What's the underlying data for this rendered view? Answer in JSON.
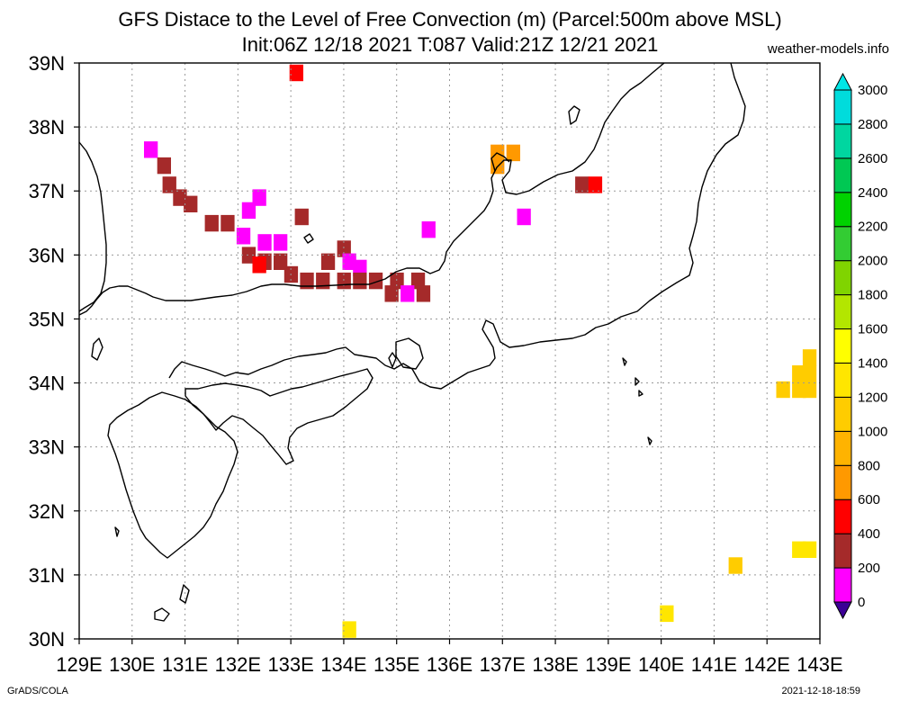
{
  "title_line1": "GFS Distace to the Level of Free Convection (m) (Parcel:500m above MSL)",
  "title_line2": "Init:06Z 12/18 2021 T:087 Valid:21Z 12/21 2021",
  "site": "weather-models.info",
  "footer_left": "GrADS/COLA",
  "footer_right": "2021-12-18-18:59",
  "map": {
    "lon_min": 129,
    "lon_max": 143,
    "lat_min": 30,
    "lat_max": 39,
    "lon_labels": [
      "129E",
      "130E",
      "131E",
      "132E",
      "133E",
      "134E",
      "135E",
      "136E",
      "137E",
      "138E",
      "139E",
      "140E",
      "141E",
      "142E",
      "143E"
    ],
    "lat_labels": [
      "30N",
      "31N",
      "32N",
      "33N",
      "34N",
      "35N",
      "36N",
      "37N",
      "38N",
      "39N"
    ]
  },
  "colorbar": {
    "levels": [
      "0",
      "200",
      "400",
      "600",
      "800",
      "1000",
      "1200",
      "1400",
      "1600",
      "1800",
      "2000",
      "2200",
      "2400",
      "2600",
      "2800",
      "3000"
    ],
    "colors": [
      "#3c0096",
      "#ff00ff",
      "#a52a2a",
      "#ff0000",
      "#ff9900",
      "#ffb300",
      "#ffcc00",
      "#ffe600",
      "#ffff00",
      "#b3e600",
      "#80d400",
      "#33cc33",
      "#00d200",
      "#00c853",
      "#00d6a0",
      "#00dcdc",
      "#00e6e6"
    ]
  },
  "chart_data": {
    "type": "heatmap",
    "value_unit": "m",
    "cells": [
      {
        "lon": 133.1,
        "lat": 38.85,
        "v": 500
      },
      {
        "lon": 130.35,
        "lat": 37.65,
        "v": 150
      },
      {
        "lon": 130.6,
        "lat": 37.4,
        "v": 250
      },
      {
        "lon": 130.7,
        "lat": 37.1,
        "v": 250
      },
      {
        "lon": 130.9,
        "lat": 36.9,
        "v": 250
      },
      {
        "lon": 131.1,
        "lat": 36.8,
        "v": 250
      },
      {
        "lon": 131.5,
        "lat": 36.5,
        "v": 300
      },
      {
        "lon": 131.8,
        "lat": 36.5,
        "v": 300
      },
      {
        "lon": 132.2,
        "lat": 36.7,
        "v": 150
      },
      {
        "lon": 132.4,
        "lat": 36.9,
        "v": 150
      },
      {
        "lon": 132.1,
        "lat": 36.3,
        "v": 150
      },
      {
        "lon": 132.5,
        "lat": 36.2,
        "v": 150
      },
      {
        "lon": 132.8,
        "lat": 36.2,
        "v": 150
      },
      {
        "lon": 132.2,
        "lat": 36.0,
        "v": 300
      },
      {
        "lon": 132.5,
        "lat": 35.9,
        "v": 300
      },
      {
        "lon": 132.8,
        "lat": 35.9,
        "v": 300
      },
      {
        "lon": 132.4,
        "lat": 35.85,
        "v": 500
      },
      {
        "lon": 133.0,
        "lat": 35.7,
        "v": 300
      },
      {
        "lon": 133.3,
        "lat": 35.6,
        "v": 300
      },
      {
        "lon": 133.6,
        "lat": 35.6,
        "v": 300
      },
      {
        "lon": 134.0,
        "lat": 35.6,
        "v": 300
      },
      {
        "lon": 133.7,
        "lat": 35.9,
        "v": 300
      },
      {
        "lon": 133.2,
        "lat": 36.6,
        "v": 300
      },
      {
        "lon": 134.0,
        "lat": 36.1,
        "v": 300
      },
      {
        "lon": 134.1,
        "lat": 35.9,
        "v": 150
      },
      {
        "lon": 134.3,
        "lat": 35.8,
        "v": 150
      },
      {
        "lon": 134.3,
        "lat": 35.6,
        "v": 300
      },
      {
        "lon": 134.6,
        "lat": 35.6,
        "v": 300
      },
      {
        "lon": 135.0,
        "lat": 35.6,
        "v": 300
      },
      {
        "lon": 135.4,
        "lat": 35.6,
        "v": 300
      },
      {
        "lon": 134.9,
        "lat": 35.4,
        "v": 300
      },
      {
        "lon": 135.2,
        "lat": 35.4,
        "v": 150
      },
      {
        "lon": 135.5,
        "lat": 35.4,
        "v": 300
      },
      {
        "lon": 135.6,
        "lat": 36.4,
        "v": 150
      },
      {
        "lon": 136.9,
        "lat": 37.6,
        "v": 700
      },
      {
        "lon": 137.2,
        "lat": 37.6,
        "v": 700
      },
      {
        "lon": 136.9,
        "lat": 37.4,
        "v": 700
      },
      {
        "lon": 137.4,
        "lat": 36.6,
        "v": 100
      },
      {
        "lon": 138.5,
        "lat": 37.1,
        "v": 300
      },
      {
        "lon": 138.75,
        "lat": 37.1,
        "v": 500
      },
      {
        "lon": 142.8,
        "lat": 34.4,
        "v": 1000
      },
      {
        "lon": 142.6,
        "lat": 34.15,
        "v": 1000
      },
      {
        "lon": 142.8,
        "lat": 34.15,
        "v": 1000
      },
      {
        "lon": 142.3,
        "lat": 33.9,
        "v": 1000
      },
      {
        "lon": 142.6,
        "lat": 33.9,
        "v": 1000
      },
      {
        "lon": 142.8,
        "lat": 33.9,
        "v": 1000
      },
      {
        "lon": 142.6,
        "lat": 31.4,
        "v": 1200
      },
      {
        "lon": 142.8,
        "lat": 31.4,
        "v": 1200
      },
      {
        "lon": 141.4,
        "lat": 31.15,
        "v": 1000
      },
      {
        "lon": 140.1,
        "lat": 30.4,
        "v": 1200
      },
      {
        "lon": 134.1,
        "lat": 30.15,
        "v": 1200
      }
    ]
  }
}
